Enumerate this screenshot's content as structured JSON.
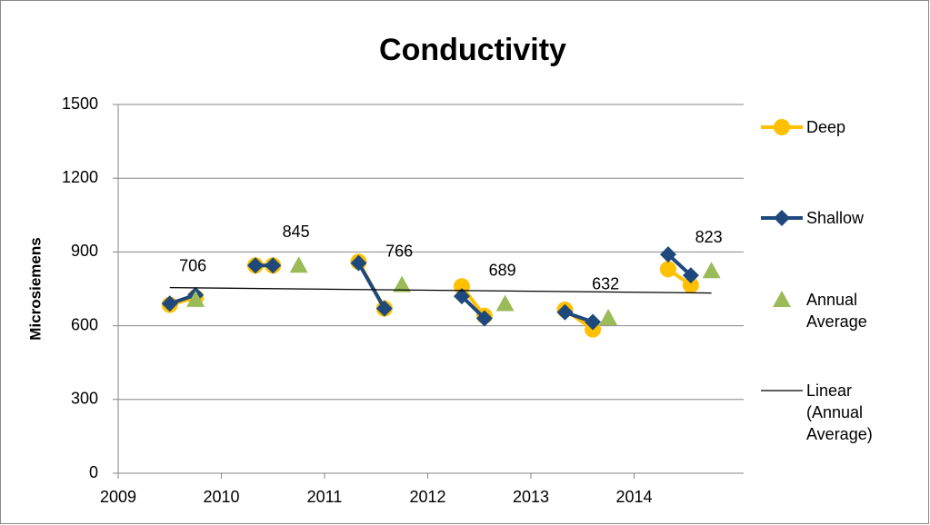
{
  "chart_data": {
    "type": "line",
    "title": "Conductivity",
    "y_label": "Microsiemens",
    "xlim": [
      2009,
      2015
    ],
    "xticks": [
      2009,
      2010,
      2011,
      2012,
      2013,
      2014
    ],
    "ylim": [
      0,
      1500
    ],
    "yticks": [
      0,
      300,
      600,
      900,
      1200,
      1500
    ],
    "grid": true,
    "series": [
      {
        "name": "Deep",
        "color": "#ffc000",
        "marker": "circle",
        "x": [
          2009.5,
          2009.75,
          null,
          2010.33,
          2010.5,
          null,
          2011.33,
          2011.58,
          null,
          2012.33,
          2012.55,
          null,
          2013.33,
          2013.6,
          null,
          2014.33,
          2014.55
        ],
        "values": [
          685,
          715,
          null,
          845,
          845,
          null,
          860,
          670,
          null,
          760,
          640,
          null,
          665,
          585,
          null,
          830,
          765
        ]
      },
      {
        "name": "Shallow",
        "color": "#1f497d",
        "marker": "diamond",
        "x": [
          2009.5,
          2009.75,
          null,
          2010.33,
          2010.5,
          null,
          2011.33,
          2011.58,
          null,
          2012.33,
          2012.55,
          null,
          2013.33,
          2013.6,
          null,
          2014.33,
          2014.55
        ],
        "values": [
          690,
          725,
          null,
          845,
          845,
          null,
          855,
          670,
          null,
          720,
          630,
          null,
          655,
          615,
          null,
          890,
          805
        ]
      },
      {
        "name": "Annual Average",
        "color": "#9bbb59",
        "marker": "triangle",
        "line": false,
        "labels": true,
        "x": [
          2009.75,
          2010.75,
          2011.75,
          2012.75,
          2013.75,
          2014.75
        ],
        "values": [
          706,
          845,
          766,
          689,
          632,
          823
        ]
      },
      {
        "name": "Linear (Annual Average)",
        "color": "#000000",
        "marker": "none",
        "x": [
          2009.5,
          2014.75
        ],
        "values": [
          755,
          733
        ]
      }
    ]
  }
}
